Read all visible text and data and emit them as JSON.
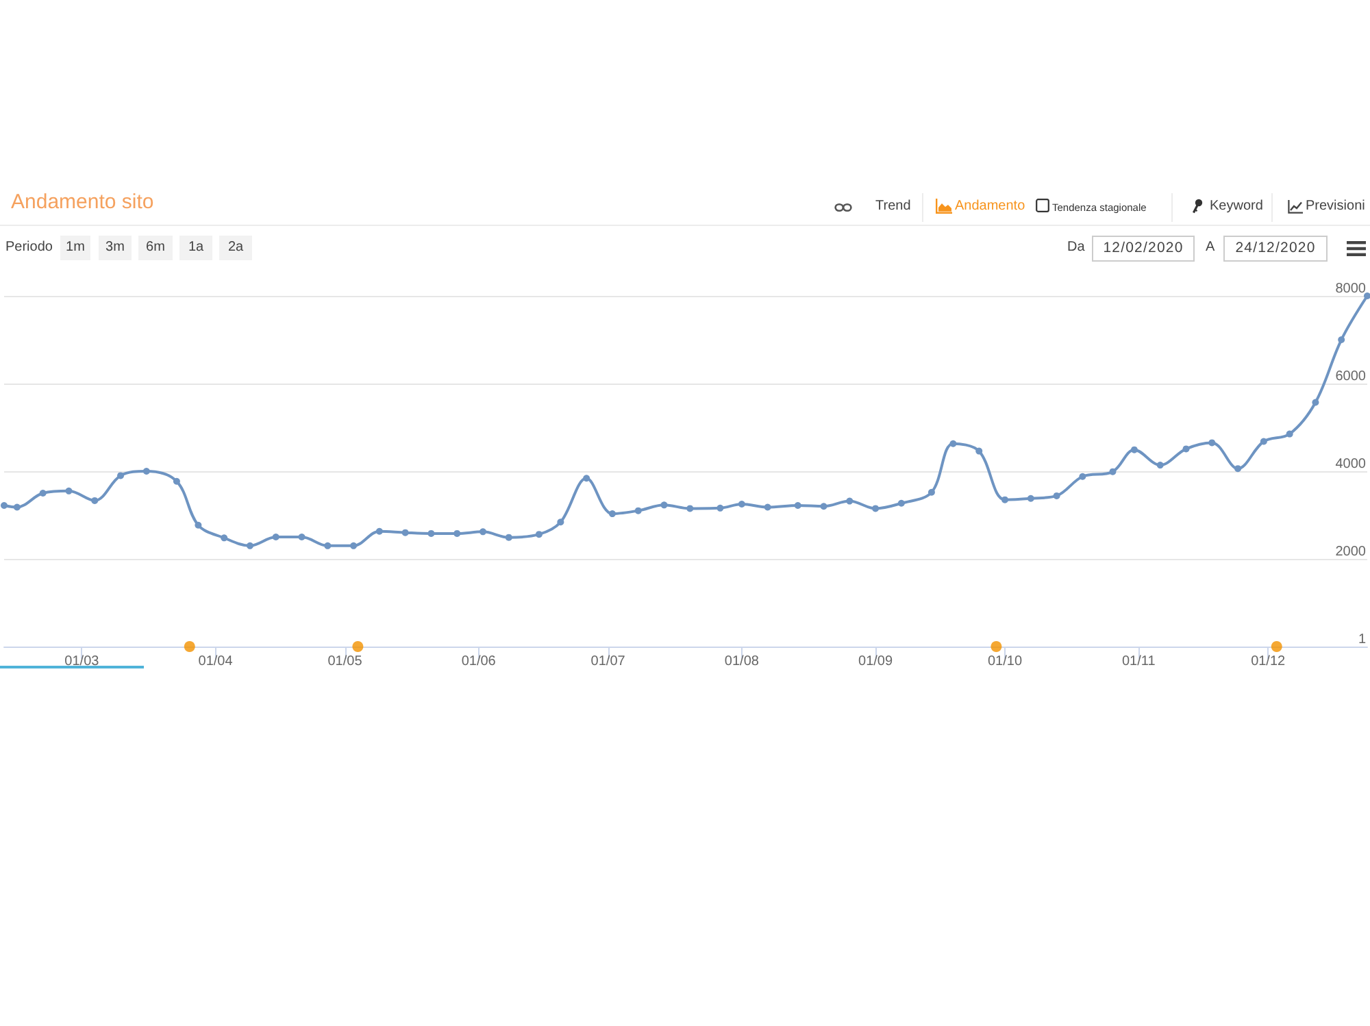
{
  "chart_data": {
    "type": "line",
    "title": "Andamento sito",
    "annotations": [
      "Trend",
      "Andamento",
      "Tendenza stagionale",
      "Keyword",
      "Previsioni",
      "Periodo",
      "1m",
      "3m",
      "6m",
      "1a",
      "2a",
      "Da",
      "12/02/2020",
      "A",
      "24/12/2020"
    ],
    "series": [
      {
        "color": "#6e94c2",
        "x": [
          "2020-02-12",
          "2020-02-15",
          "2020-02-21",
          "2020-02-27",
          "2020-03-04",
          "2020-03-10",
          "2020-03-16",
          "2020-03-23",
          "2020-03-28",
          "2020-04-03",
          "2020-04-09",
          "2020-04-15",
          "2020-04-21",
          "2020-04-27",
          "2020-05-03",
          "2020-05-09",
          "2020-05-15",
          "2020-05-21",
          "2020-05-27",
          "2020-06-02",
          "2020-06-08",
          "2020-06-15",
          "2020-06-20",
          "2020-06-26",
          "2020-07-02",
          "2020-07-08",
          "2020-07-14",
          "2020-07-20",
          "2020-07-27",
          "2020-08-01",
          "2020-08-07",
          "2020-08-14",
          "2020-08-20",
          "2020-08-26",
          "2020-09-01",
          "2020-09-07",
          "2020-09-14",
          "2020-09-19",
          "2020-09-25",
          "2020-10-01",
          "2020-10-07",
          "2020-10-13",
          "2020-10-19",
          "2020-10-26",
          "2020-10-31",
          "2020-11-06",
          "2020-11-12",
          "2020-11-18",
          "2020-11-24",
          "2020-11-30",
          "2020-12-06",
          "2020-12-12",
          "2020-12-18",
          "2020-12-24"
        ],
        "values": [
          3220,
          3180,
          3500,
          3550,
          3330,
          3900,
          4000,
          3770,
          2770,
          2480,
          2300,
          2500,
          2500,
          2300,
          2300,
          2630,
          2600,
          2580,
          2580,
          2620,
          2490,
          2560,
          2840,
          3840,
          3030,
          3100,
          3230,
          3150,
          3160,
          3250,
          3180,
          3220,
          3200,
          3320,
          3150,
          3270,
          3520,
          4630,
          4460,
          3350,
          3380,
          3440,
          3880,
          3990,
          4490,
          4140,
          4510,
          4650,
          4060,
          4680,
          4850,
          5570,
          7000,
          8000
        ]
      },
      {
        "type": "scatter",
        "color": "#f39200",
        "x": [
          "2020-03-26",
          "2020-05-04",
          "2020-09-29",
          "2020-12-03"
        ],
        "values": [
          1,
          1,
          1,
          1
        ]
      }
    ],
    "xlim": [
      "2020-02-12",
      "2020-12-24"
    ],
    "xticks": [
      {
        "value": "2020-03-01",
        "label": "01/03"
      },
      {
        "value": "2020-04-01",
        "label": "01/04"
      },
      {
        "value": "2020-05-01",
        "label": "01/05"
      },
      {
        "value": "2020-06-01",
        "label": "01/06"
      },
      {
        "value": "2020-07-01",
        "label": "01/07"
      },
      {
        "value": "2020-08-01",
        "label": "01/08"
      },
      {
        "value": "2020-09-01",
        "label": "01/09"
      },
      {
        "value": "2020-10-01",
        "label": "01/10"
      },
      {
        "value": "2020-11-01",
        "label": "01/11"
      },
      {
        "value": "2020-12-01",
        "label": "01/12"
      }
    ],
    "ylim": [
      1,
      8000
    ],
    "yticks": [
      1,
      2000,
      4000,
      6000,
      8000
    ],
    "grid": "y",
    "marker": "circle",
    "line_style": "solid"
  }
}
